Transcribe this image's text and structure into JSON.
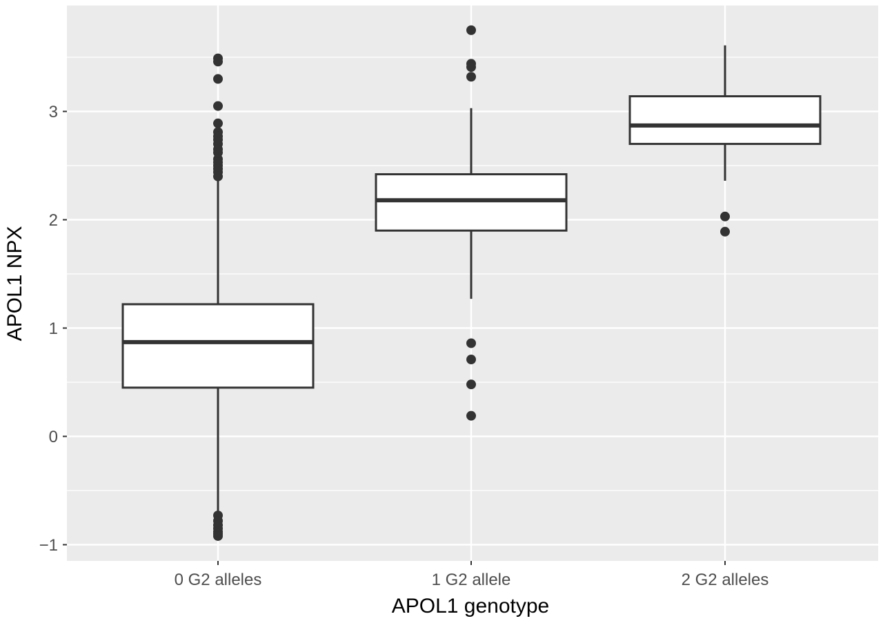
{
  "chart_data": {
    "type": "boxplot",
    "title": "",
    "xlabel": "APOL1 genotype",
    "ylabel": "APOL1 NPX",
    "categories": [
      "0 G2 alleles",
      "1 G2 allele",
      "2 G2 alleles"
    ],
    "ylim": [
      -1.15,
      3.98
    ],
    "y_ticks": [
      -1,
      0,
      1,
      2,
      3
    ],
    "y_tick_labels": [
      "−1",
      "0",
      "1",
      "2",
      "3"
    ],
    "grid": true,
    "legend": "none",
    "boxes": [
      {
        "category": "0 G2 alleles",
        "whisker_low": -0.72,
        "q1": 0.45,
        "median": 0.87,
        "q3": 1.22,
        "whisker_high": 2.37,
        "outliers": [
          3.49,
          3.46,
          3.3,
          3.05,
          2.89,
          2.81,
          2.77,
          2.74,
          2.7,
          2.65,
          2.62,
          2.56,
          2.53,
          2.5,
          2.47,
          2.44,
          2.4,
          -0.73,
          -0.78,
          -0.82,
          -0.85,
          -0.88,
          -0.9,
          -0.92
        ]
      },
      {
        "category": "1 G2 allele",
        "whisker_low": 1.27,
        "q1": 1.9,
        "median": 2.18,
        "q3": 2.42,
        "whisker_high": 3.03,
        "outliers": [
          3.75,
          3.44,
          3.41,
          3.32,
          0.86,
          0.71,
          0.48,
          0.19
        ]
      },
      {
        "category": "2 G2 alleles",
        "whisker_low": 2.36,
        "q1": 2.7,
        "median": 2.87,
        "q3": 3.14,
        "whisker_high": 3.61,
        "outliers": [
          2.03,
          1.89
        ]
      }
    ],
    "colors": {
      "panel_background": "#ebebeb",
      "grid": "#ffffff",
      "box_fill": "#ffffff",
      "box_stroke": "#333333",
      "outlier": "#333333"
    }
  }
}
